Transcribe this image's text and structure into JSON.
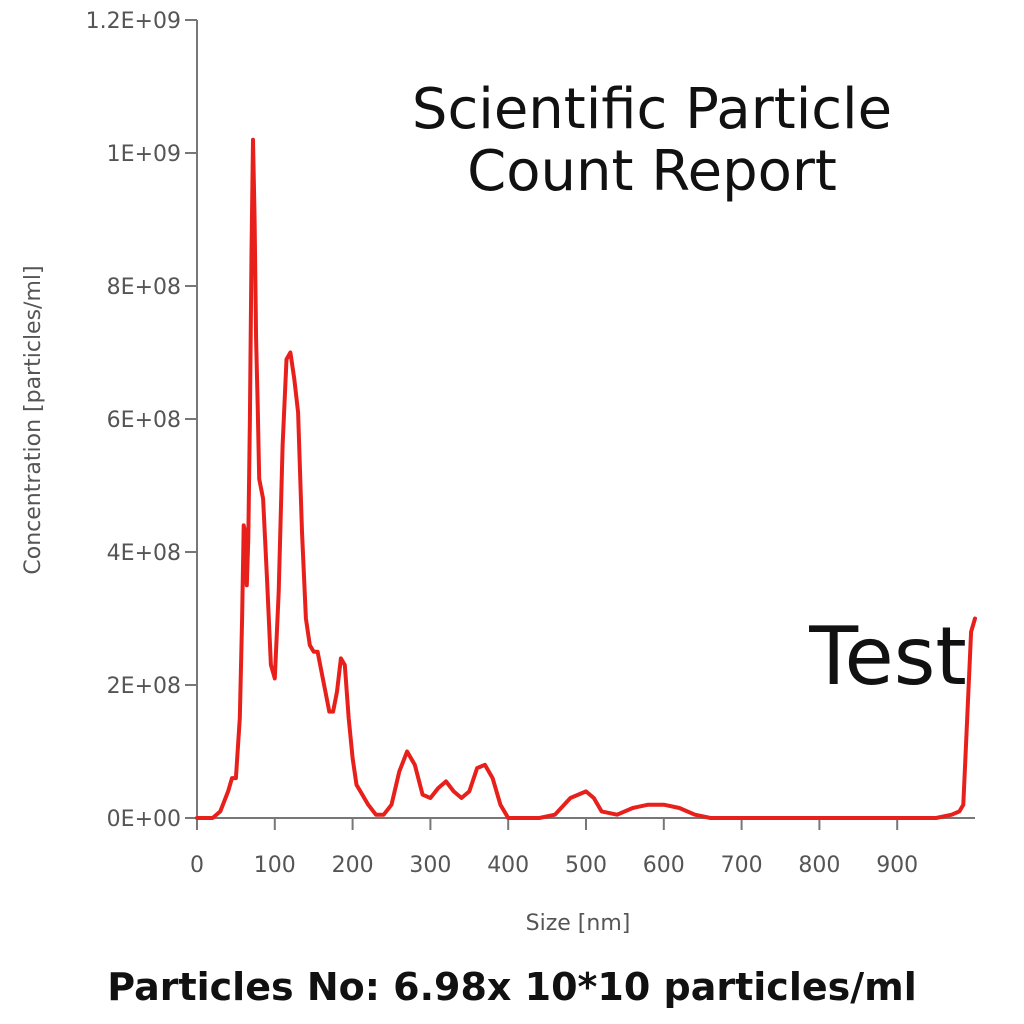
{
  "chart_data": {
    "type": "line",
    "title_lines": [
      "Scientific Particle",
      "Count Report"
    ],
    "xlabel": "Size [nm]",
    "ylabel": "Concentration [particles/ml]",
    "xlim": [
      0,
      1000
    ],
    "ylim": [
      0,
      1200000000
    ],
    "x_ticks": [
      0,
      100,
      200,
      300,
      400,
      500,
      600,
      700,
      800,
      900
    ],
    "x_tick_labels": [
      "0",
      "100",
      "200",
      "300",
      "400",
      "500",
      "600",
      "700",
      "800",
      "900"
    ],
    "y_ticks": [
      0,
      200000000,
      400000000,
      600000000,
      800000000,
      1000000000,
      1200000000
    ],
    "y_tick_labels": [
      "0E+00",
      "2E+08",
      "4E+08",
      "6E+08",
      "8E+08",
      "1E+09",
      "1.2E+09"
    ],
    "grid": false,
    "line_color": "#e8201c",
    "annotation": "Test",
    "series": [
      {
        "x": [
          0,
          10,
          20,
          30,
          40,
          45,
          50,
          55,
          58,
          60,
          62,
          64,
          66,
          68,
          70,
          72,
          74,
          76,
          78,
          80,
          85,
          90,
          95,
          100,
          105,
          110,
          115,
          120,
          125,
          130,
          135,
          140,
          145,
          150,
          155,
          160,
          165,
          170,
          175,
          180,
          185,
          190,
          195,
          200,
          205,
          210,
          220,
          230,
          240,
          250,
          260,
          270,
          280,
          290,
          300,
          310,
          320,
          330,
          340,
          350,
          360,
          370,
          380,
          390,
          400,
          420,
          440,
          460,
          480,
          500,
          510,
          520,
          540,
          560,
          580,
          600,
          620,
          640,
          660,
          700,
          800,
          900,
          950,
          970,
          980,
          985,
          990,
          995,
          1000
        ],
        "y": [
          0,
          0,
          0,
          10000000,
          40000000,
          60000000,
          60000000,
          150000000,
          300000000,
          440000000,
          430000000,
          350000000,
          420000000,
          600000000,
          850000000,
          1020000000,
          900000000,
          720000000,
          620000000,
          510000000,
          480000000,
          360000000,
          230000000,
          210000000,
          340000000,
          560000000,
          690000000,
          700000000,
          660000000,
          610000000,
          430000000,
          300000000,
          260000000,
          250000000,
          250000000,
          220000000,
          190000000,
          160000000,
          160000000,
          190000000,
          240000000,
          230000000,
          150000000,
          90000000,
          50000000,
          40000000,
          20000000,
          5000000,
          5000000,
          20000000,
          70000000,
          100000000,
          80000000,
          35000000,
          30000000,
          45000000,
          55000000,
          40000000,
          30000000,
          40000000,
          75000000,
          80000000,
          60000000,
          20000000,
          0,
          0,
          0,
          5000000,
          30000000,
          40000000,
          30000000,
          10000000,
          5000000,
          15000000,
          20000000,
          20000000,
          15000000,
          5000000,
          0,
          0,
          0,
          0,
          0,
          5000000,
          10000000,
          20000000,
          150000000,
          280000000,
          300000000
        ]
      }
    ]
  },
  "footer": "Particles No: 6.98x 10*10 particles/ml"
}
